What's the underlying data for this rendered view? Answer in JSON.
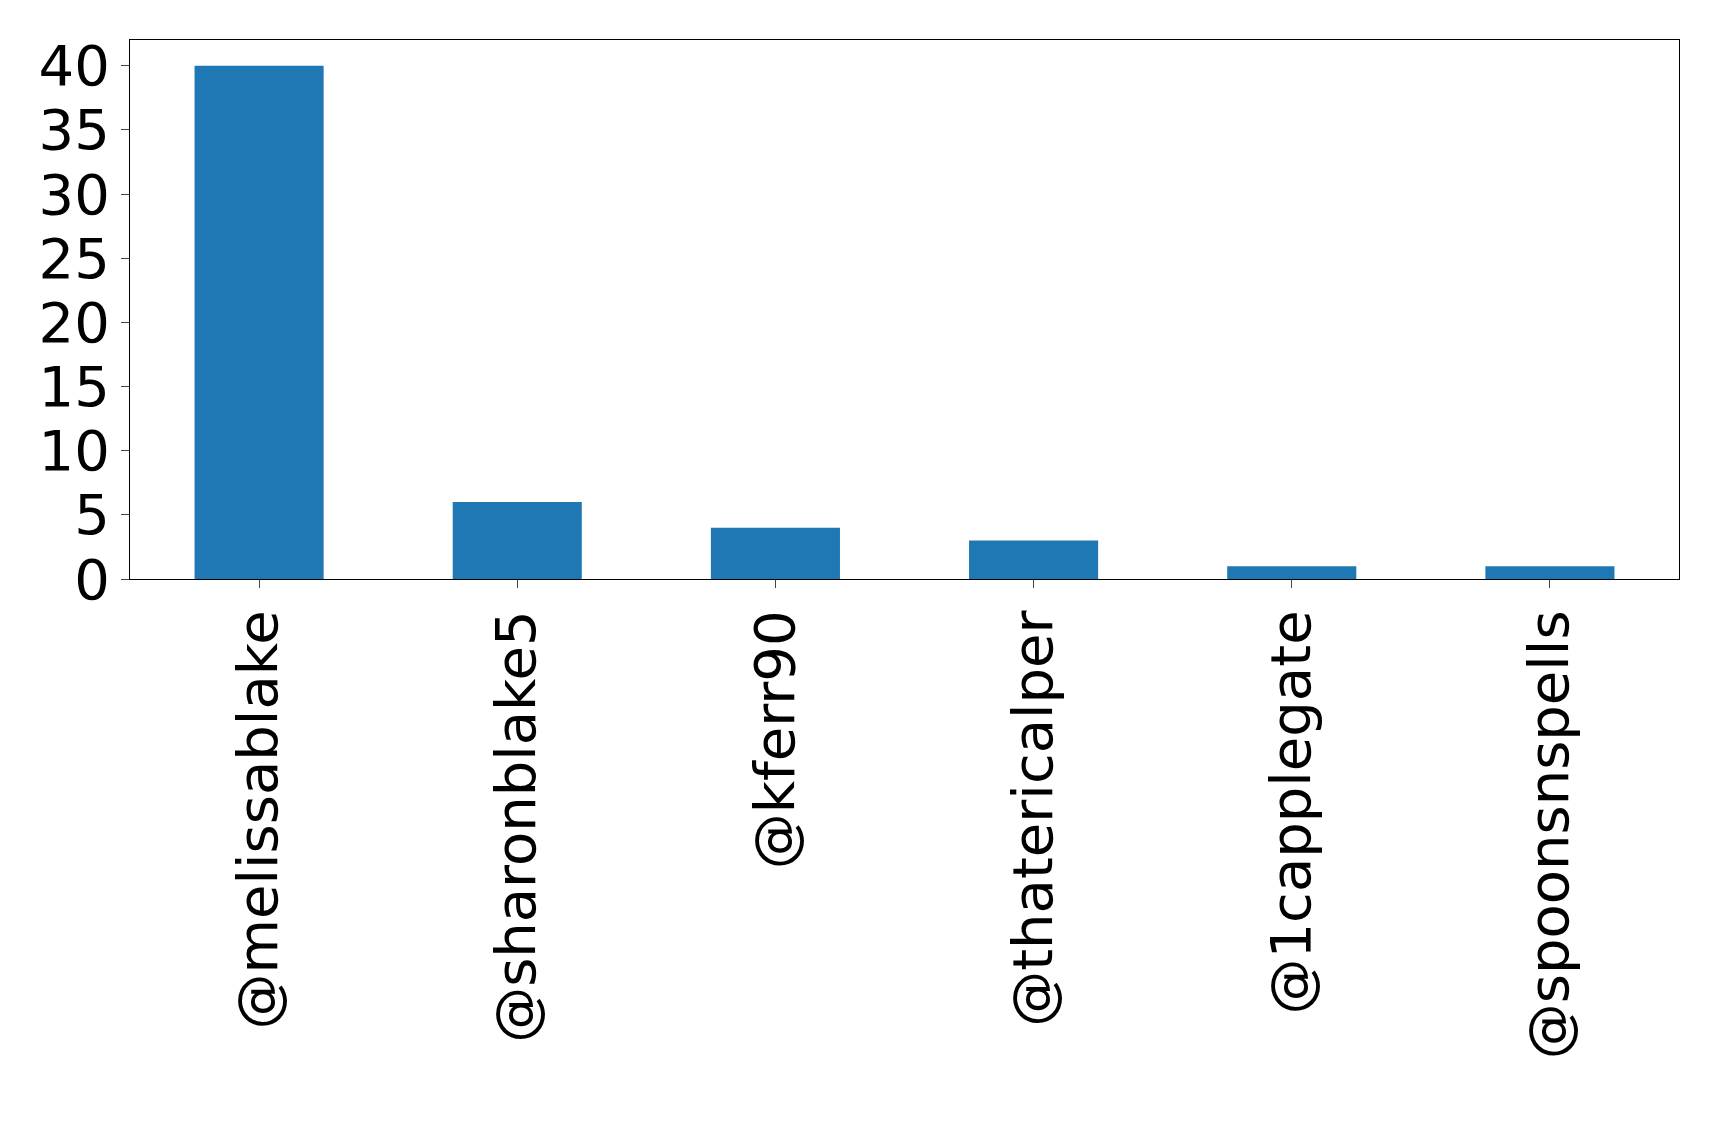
{
  "chart_data": {
    "type": "bar",
    "categories": [
      "@melissablake",
      "@sharonblake5",
      "@kferr90",
      "@thatericalper",
      "@1capplegate",
      "@spoonsnspells"
    ],
    "values": [
      40,
      6,
      4,
      3,
      1,
      1
    ],
    "color": "#1f77b4",
    "ylim": [
      0,
      42
    ],
    "yticks": [
      0,
      5,
      10,
      15,
      20,
      25,
      30,
      35,
      40
    ]
  }
}
